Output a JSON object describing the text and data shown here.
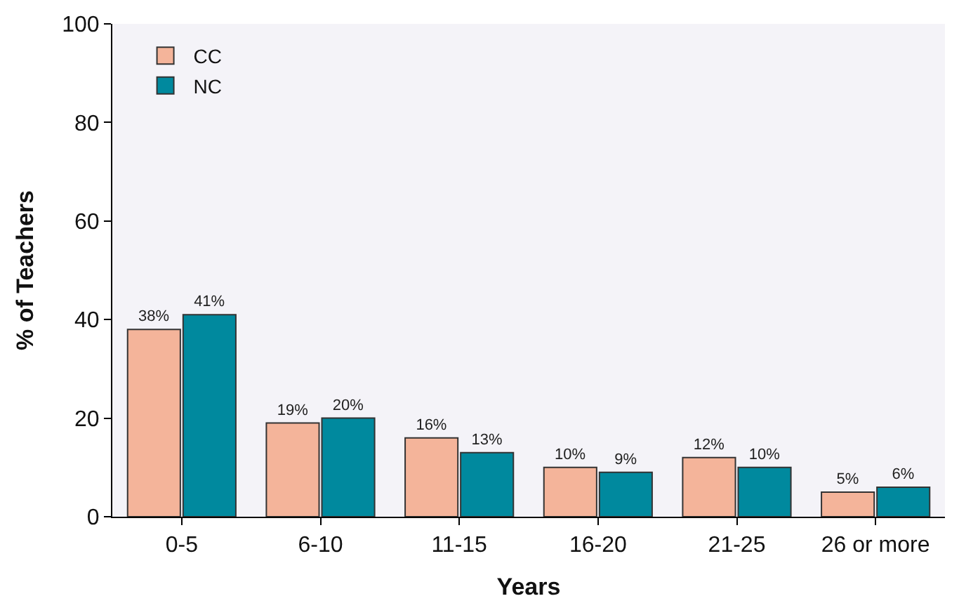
{
  "chart_data": {
    "type": "bar",
    "xlabel": "Years",
    "ylabel": "% of Teachers",
    "categories": [
      "0-5",
      "6-10",
      "11-15",
      "16-20",
      "21-25",
      "26 or more"
    ],
    "series": [
      {
        "name": "CC",
        "color": "#f4b49a",
        "values": [
          38,
          19,
          16,
          10,
          12,
          5
        ],
        "value_labels": [
          "38%",
          "19%",
          "16%",
          "10%",
          "12%",
          "5%"
        ]
      },
      {
        "name": "NC",
        "color": "#00899e",
        "values": [
          41,
          20,
          13,
          9,
          10,
          6
        ],
        "value_labels": [
          "41%",
          "20%",
          "13%",
          "9%",
          "10%",
          "6%"
        ]
      }
    ],
    "ylim": [
      0,
      100
    ],
    "yticks": [
      0,
      20,
      40,
      60,
      80,
      100
    ],
    "grid": false,
    "legend": "top left"
  }
}
